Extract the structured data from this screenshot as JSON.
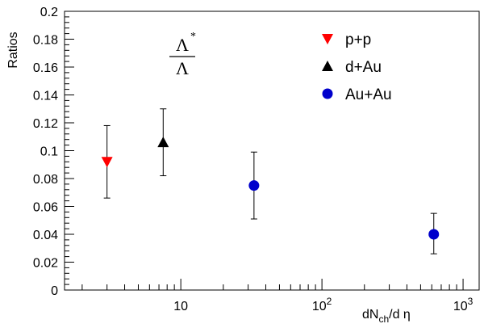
{
  "chart_data": {
    "type": "scatter",
    "ylabel": "Ratios",
    "xlabel_main": "dN",
    "xlabel_sub": "ch",
    "xlabel_tail": "/d η",
    "annotation": {
      "numerator": "Λ",
      "numerator_sup": "*",
      "denominator": "Λ"
    },
    "xscale": "log",
    "xlim": [
      1.5,
      1300
    ],
    "ylim": [
      0,
      0.2
    ],
    "yticks": [
      0,
      0.02,
      0.04,
      0.06,
      0.08,
      0.1,
      0.12,
      0.14,
      0.16,
      0.18,
      0.2
    ],
    "ytick_labels": [
      "0",
      "0.02",
      "0.04",
      "0.06",
      "0.08",
      "0.1",
      "0.12",
      "0.14",
      "0.16",
      "0.18",
      "0.2"
    ],
    "xtick_labels": [
      {
        "value": 10,
        "base": "10",
        "exp": ""
      },
      {
        "value": 100,
        "base": "10",
        "exp": "2"
      },
      {
        "value": 1000,
        "base": "10",
        "exp": "3"
      }
    ],
    "grid": false,
    "legend_position": "top-right",
    "series": [
      {
        "name": "p+p",
        "marker": "triangle-down",
        "color": "#ff0000",
        "points": [
          {
            "x": 3.0,
            "y": 0.092,
            "yerr_low": 0.066,
            "yerr_high": 0.118
          }
        ]
      },
      {
        "name": "d+Au",
        "marker": "triangle-up",
        "color": "#000000",
        "points": [
          {
            "x": 7.5,
            "y": 0.106,
            "yerr_low": 0.082,
            "yerr_high": 0.13
          }
        ]
      },
      {
        "name": "Au+Au",
        "marker": "circle",
        "color": "#0000cc",
        "points": [
          {
            "x": 33,
            "y": 0.075,
            "yerr_low": 0.051,
            "yerr_high": 0.099
          },
          {
            "x": 620,
            "y": 0.04,
            "yerr_low": 0.026,
            "yerr_high": 0.055
          }
        ]
      }
    ]
  }
}
